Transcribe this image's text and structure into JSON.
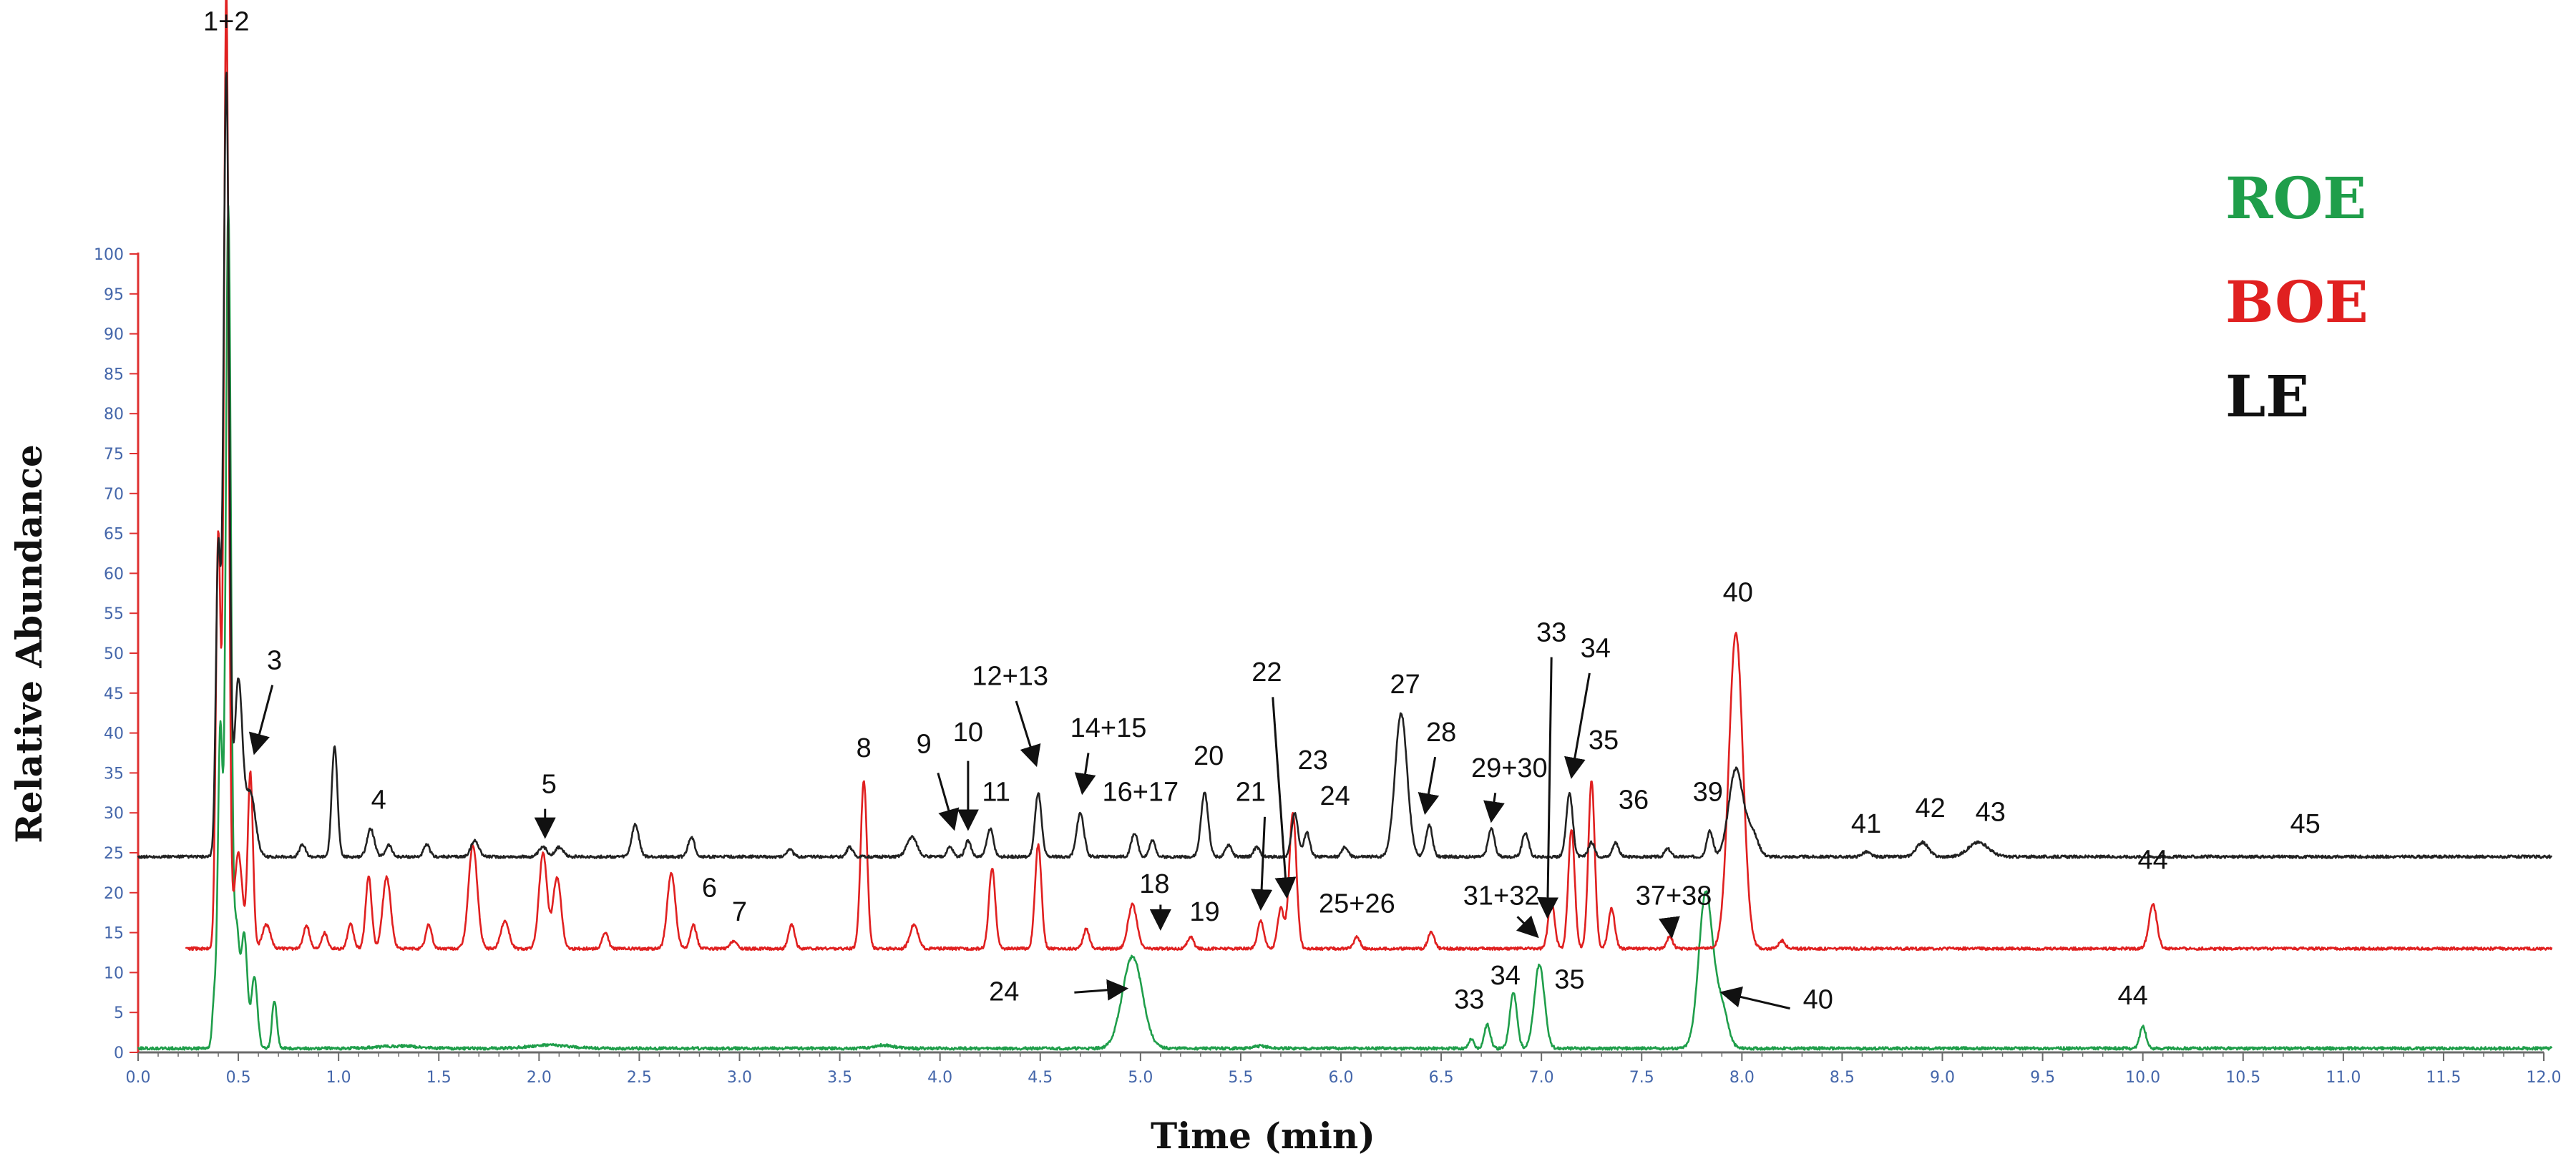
{
  "chart_data": {
    "type": "line",
    "xlabel": "Time (min)",
    "ylabel": "Relative Abundance",
    "xlim": [
      0,
      12
    ],
    "ylim": [
      0,
      100
    ],
    "x_ticks": [
      "0.0",
      "0.5",
      "1.0",
      "1.5",
      "2.0",
      "2.5",
      "3.0",
      "3.5",
      "4.0",
      "4.5",
      "5.0",
      "5.5",
      "6.0",
      "6.5",
      "7.0",
      "7.5",
      "8.0",
      "8.5",
      "9.0",
      "9.5",
      "10.0",
      "10.5",
      "11.0",
      "11.5",
      "12.0"
    ],
    "y_ticks": [
      "0",
      "5",
      "10",
      "15",
      "20",
      "25",
      "30",
      "35",
      "40",
      "45",
      "50",
      "55",
      "60",
      "65",
      "70",
      "75",
      "80",
      "85",
      "90",
      "95",
      "100"
    ],
    "legend": [
      {
        "label": "ROE",
        "color": "#1f9e4a"
      },
      {
        "label": "BOE",
        "color": "#e02020"
      },
      {
        "label": "LE",
        "color": "#111111"
      }
    ],
    "series": [
      {
        "name": "LE",
        "color": "#222222",
        "baseline": 24.5,
        "peaks": [
          [
            0.4,
            38,
            0.012
          ],
          [
            0.44,
            98,
            0.014
          ],
          [
            0.5,
            22,
            0.02
          ],
          [
            0.56,
            8,
            0.025
          ],
          [
            0.82,
            1.5,
            0.015
          ],
          [
            0.98,
            14,
            0.014
          ],
          [
            1.16,
            3.5,
            0.018
          ],
          [
            1.25,
            1.5,
            0.015
          ],
          [
            1.44,
            1.5,
            0.015
          ],
          [
            1.68,
            2,
            0.02
          ],
          [
            2.02,
            1.2,
            0.02
          ],
          [
            2.1,
            1.2,
            0.02
          ],
          [
            2.48,
            4,
            0.018
          ],
          [
            2.76,
            2.5,
            0.016
          ],
          [
            3.25,
            1,
            0.015
          ],
          [
            3.55,
            1.2,
            0.015
          ],
          [
            3.86,
            2.5,
            0.025
          ],
          [
            4.05,
            1.2,
            0.015
          ],
          [
            4.14,
            2,
            0.015
          ],
          [
            4.25,
            3.5,
            0.016
          ],
          [
            4.49,
            8,
            0.016
          ],
          [
            4.7,
            5.5,
            0.018
          ],
          [
            4.97,
            3,
            0.016
          ],
          [
            5.06,
            2,
            0.015
          ],
          [
            5.32,
            8,
            0.018
          ],
          [
            5.44,
            1.5,
            0.015
          ],
          [
            5.58,
            1.2,
            0.015
          ],
          [
            5.77,
            5.5,
            0.016
          ],
          [
            5.83,
            3,
            0.015
          ],
          [
            6.02,
            1.2,
            0.015
          ],
          [
            6.3,
            18,
            0.03
          ],
          [
            6.44,
            4,
            0.016
          ],
          [
            6.75,
            3.5,
            0.016
          ],
          [
            6.92,
            3,
            0.016
          ],
          [
            7.14,
            8,
            0.016
          ],
          [
            7.25,
            1.8,
            0.015
          ],
          [
            7.37,
            1.8,
            0.015
          ],
          [
            7.63,
            1,
            0.015
          ],
          [
            7.84,
            3.2,
            0.016
          ],
          [
            7.97,
            11,
            0.035
          ],
          [
            8.05,
            3,
            0.03
          ],
          [
            8.62,
            0.6,
            0.02
          ],
          [
            8.9,
            1.8,
            0.03
          ],
          [
            9.18,
            1.8,
            0.05
          ]
        ]
      },
      {
        "name": "BOE",
        "color": "#e02020",
        "baseline": 13,
        "peaks": [
          [
            0.4,
            52,
            0.012
          ],
          [
            0.44,
            120,
            0.012
          ],
          [
            0.5,
            12,
            0.02
          ],
          [
            0.56,
            22,
            0.013
          ],
          [
            0.64,
            3,
            0.02
          ],
          [
            0.84,
            3,
            0.015
          ],
          [
            0.93,
            2,
            0.015
          ],
          [
            1.06,
            3,
            0.015
          ],
          [
            1.15,
            9,
            0.015
          ],
          [
            1.24,
            9,
            0.02
          ],
          [
            1.45,
            3,
            0.015
          ],
          [
            1.67,
            13,
            0.022
          ],
          [
            1.83,
            3.5,
            0.02
          ],
          [
            2.02,
            12,
            0.02
          ],
          [
            2.09,
            9,
            0.02
          ],
          [
            2.33,
            2,
            0.015
          ],
          [
            2.66,
            9.5,
            0.02
          ],
          [
            2.77,
            3,
            0.015
          ],
          [
            2.97,
            1,
            0.015
          ],
          [
            3.26,
            3,
            0.015
          ],
          [
            3.62,
            21,
            0.016
          ],
          [
            3.87,
            3,
            0.02
          ],
          [
            4.26,
            10,
            0.016
          ],
          [
            4.49,
            13,
            0.016
          ],
          [
            4.73,
            2.5,
            0.015
          ],
          [
            4.96,
            5.5,
            0.022
          ],
          [
            5.25,
            1.5,
            0.015
          ],
          [
            5.6,
            3.5,
            0.016
          ],
          [
            5.7,
            5,
            0.016
          ],
          [
            5.76,
            17,
            0.018
          ],
          [
            6.08,
            1.5,
            0.015
          ],
          [
            6.45,
            2,
            0.016
          ],
          [
            7.05,
            6,
            0.016
          ],
          [
            7.15,
            15,
            0.016
          ],
          [
            7.25,
            21,
            0.016
          ],
          [
            7.35,
            5,
            0.016
          ],
          [
            7.64,
            1.5,
            0.015
          ],
          [
            7.97,
            39.5,
            0.035
          ],
          [
            8.2,
            1,
            0.015
          ],
          [
            10.05,
            5.5,
            0.02
          ]
        ]
      },
      {
        "name": "ROE",
        "color": "#1f9e4a",
        "baseline": 0.5,
        "peaks": [
          [
            0.38,
            6,
            0.01
          ],
          [
            0.41,
            40,
            0.012
          ],
          [
            0.45,
            105,
            0.013
          ],
          [
            0.49,
            15,
            0.015
          ],
          [
            0.53,
            14,
            0.015
          ],
          [
            0.58,
            9,
            0.015
          ],
          [
            0.68,
            6,
            0.012
          ],
          [
            1.3,
            0.3,
            0.1
          ],
          [
            2.05,
            0.4,
            0.1
          ],
          [
            3.72,
            0.4,
            0.05
          ],
          [
            4.96,
            11.5,
            0.05
          ],
          [
            5.6,
            0.3,
            0.03
          ],
          [
            6.65,
            1.2,
            0.012
          ],
          [
            6.73,
            3,
            0.015
          ],
          [
            6.86,
            7,
            0.018
          ],
          [
            6.99,
            10.5,
            0.025
          ],
          [
            7.82,
            19.5,
            0.035
          ],
          [
            7.9,
            5,
            0.03
          ],
          [
            10.0,
            2.8,
            0.015
          ]
        ]
      }
    ],
    "peak_labels": [
      {
        "text": "1+2",
        "x": 0.44,
        "y": 128
      },
      {
        "text": "3",
        "x": 0.68,
        "y": 48
      },
      {
        "text": "4",
        "x": 1.2,
        "y": 30.5
      },
      {
        "text": "5",
        "x": 2.05,
        "y": 32.5
      },
      {
        "text": "6",
        "x": 2.85,
        "y": 19.5
      },
      {
        "text": "7",
        "x": 3.0,
        "y": 16.5
      },
      {
        "text": "8",
        "x": 3.62,
        "y": 37
      },
      {
        "text": "9",
        "x": 3.92,
        "y": 37.5
      },
      {
        "text": "10",
        "x": 4.14,
        "y": 39
      },
      {
        "text": "11",
        "x": 4.28,
        "y": 31.5
      },
      {
        "text": "12+13",
        "x": 4.35,
        "y": 46
      },
      {
        "text": "14+15",
        "x": 4.84,
        "y": 39.5
      },
      {
        "text": "16+17",
        "x": 5.0,
        "y": 31.5
      },
      {
        "text": "18",
        "x": 5.07,
        "y": 20
      },
      {
        "text": "19",
        "x": 5.32,
        "y": 16.5
      },
      {
        "text": "20",
        "x": 5.34,
        "y": 36
      },
      {
        "text": "21",
        "x": 5.55,
        "y": 31.5
      },
      {
        "text": "22",
        "x": 5.63,
        "y": 46.5
      },
      {
        "text": "23",
        "x": 5.86,
        "y": 35.5
      },
      {
        "text": "24",
        "x": 5.97,
        "y": 31
      },
      {
        "text": "25+26",
        "x": 6.08,
        "y": 17.5
      },
      {
        "text": "27",
        "x": 6.32,
        "y": 45
      },
      {
        "text": "28",
        "x": 6.5,
        "y": 39
      },
      {
        "text": "29+30",
        "x": 6.84,
        "y": 34.5
      },
      {
        "text": "31+32",
        "x": 6.8,
        "y": 18.5
      },
      {
        "text": "33",
        "x": 7.05,
        "y": 51.5
      },
      {
        "text": "34",
        "x": 7.27,
        "y": 49.5
      },
      {
        "text": "35",
        "x": 7.31,
        "y": 38
      },
      {
        "text": "36",
        "x": 7.46,
        "y": 30.5
      },
      {
        "text": "37+38",
        "x": 7.66,
        "y": 18.5
      },
      {
        "text": "39",
        "x": 7.83,
        "y": 31.5
      },
      {
        "text": "40",
        "x": 7.98,
        "y": 56.5
      },
      {
        "text": "41",
        "x": 8.62,
        "y": 27.5
      },
      {
        "text": "42",
        "x": 8.94,
        "y": 29.5
      },
      {
        "text": "43",
        "x": 9.24,
        "y": 29
      },
      {
        "text": "44",
        "x": 10.05,
        "y": 23
      },
      {
        "text": "45",
        "x": 10.81,
        "y": 27.5
      },
      {
        "text": "24",
        "x": 4.32,
        "y": 6.5
      },
      {
        "text": "33",
        "x": 6.64,
        "y": 5.5
      },
      {
        "text": "34",
        "x": 6.82,
        "y": 8.5
      },
      {
        "text": "35",
        "x": 7.14,
        "y": 8
      },
      {
        "text": "40",
        "x": 8.38,
        "y": 5.5
      },
      {
        "text": "44",
        "x": 9.95,
        "y": 6
      }
    ],
    "arrows": [
      [
        0.67,
        46,
        0.58,
        37.5
      ],
      [
        2.03,
        30.5,
        2.03,
        27
      ],
      [
        3.99,
        35,
        4.07,
        28
      ],
      [
        4.14,
        36.5,
        4.14,
        28
      ],
      [
        4.38,
        44,
        4.48,
        36
      ],
      [
        4.74,
        37.5,
        4.71,
        32.5
      ],
      [
        5.1,
        18.5,
        5.1,
        15.5
      ],
      [
        5.62,
        29.5,
        5.6,
        18
      ],
      [
        5.66,
        44.5,
        5.73,
        19.5
      ],
      [
        6.47,
        37,
        6.42,
        30
      ],
      [
        6.77,
        32.5,
        6.75,
        29
      ],
      [
        6.88,
        17,
        6.98,
        14.5
      ],
      [
        7.05,
        49.5,
        7.03,
        17
      ],
      [
        7.24,
        47.5,
        7.15,
        34.5
      ],
      [
        7.64,
        16.5,
        7.65,
        14.5
      ],
      [
        4.67,
        7.5,
        4.93,
        8
      ],
      [
        8.24,
        5.5,
        7.9,
        7.5
      ]
    ]
  }
}
